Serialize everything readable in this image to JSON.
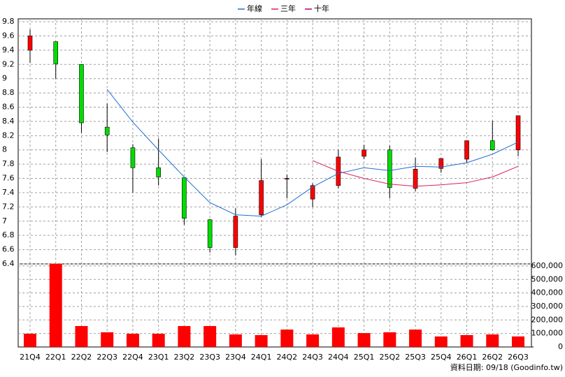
{
  "chart_data": {
    "type": "candlestick",
    "legend": "top",
    "grid": true,
    "footer": "資料日期: 09/18 (Goodinfo.tw)",
    "categories": [
      "21Q4",
      "22Q1",
      "22Q2",
      "22Q3",
      "22Q4",
      "23Q1",
      "23Q2",
      "23Q3",
      "23Q4",
      "24Q1",
      "24Q2",
      "24Q3",
      "24Q4",
      "25Q1",
      "25Q2",
      "25Q3",
      "25Q4",
      "26Q1",
      "26Q2",
      "26Q3"
    ],
    "up_color": "#ff0000",
    "down_color": "#00dd00",
    "open": [
      9.4,
      9.52,
      9.2,
      8.32,
      8.03,
      7.75,
      7.61,
      7.02,
      6.63,
      7.09,
      7.59,
      7.31,
      7.5,
      7.91,
      8.0,
      7.46,
      7.74,
      7.87,
      8.13,
      8.0
    ],
    "high": [
      9.69,
      9.52,
      9.2,
      8.65,
      8.08,
      8.16,
      7.61,
      7.03,
      7.18,
      7.87,
      7.65,
      7.53,
      8.0,
      8.07,
      8.06,
      7.89,
      7.88,
      8.13,
      8.41,
      8.48
    ],
    "low": [
      9.22,
      9.0,
      8.24,
      7.97,
      7.4,
      7.5,
      6.95,
      6.56,
      6.52,
      7.06,
      7.32,
      7.2,
      7.46,
      7.87,
      7.32,
      7.42,
      7.68,
      7.82,
      7.99,
      7.91
    ],
    "close": [
      9.6,
      9.21,
      8.38,
      8.21,
      7.75,
      7.62,
      7.04,
      6.63,
      7.07,
      7.57,
      7.6,
      7.5,
      7.9,
      8.0,
      7.47,
      7.73,
      7.88,
      8.13,
      8.0,
      8.48
    ],
    "series": [
      {
        "name": "年線",
        "color": "#1f6fd0",
        "values": [
          null,
          null,
          null,
          8.85,
          8.39,
          8.0,
          7.62,
          7.26,
          7.09,
          7.07,
          7.23,
          7.48,
          7.67,
          7.75,
          7.71,
          7.77,
          7.76,
          7.82,
          7.94,
          8.11
        ]
      },
      {
        "name": "三年",
        "color": "#d8205a",
        "values": [
          null,
          null,
          null,
          null,
          null,
          null,
          null,
          null,
          null,
          null,
          null,
          7.85,
          7.7,
          7.6,
          7.52,
          7.49,
          7.51,
          7.54,
          7.62,
          7.77
        ]
      },
      {
        "name": "十年",
        "color": "#b00070",
        "values": [
          null,
          null,
          null,
          null,
          null,
          null,
          null,
          null,
          null,
          null,
          null,
          null,
          null,
          null,
          null,
          null,
          null,
          null,
          null,
          null
        ]
      }
    ],
    "ylim": [
      6.4,
      9.84
    ],
    "yticks": [
      6.4,
      6.6,
      6.8,
      7,
      7.2,
      7.4,
      7.6,
      7.8,
      8,
      8.2,
      8.4,
      8.6,
      8.8,
      9,
      9.2,
      9.4,
      9.6,
      9.8
    ],
    "volume": {
      "color": "#ff0000",
      "axis": "y2",
      "values": [
        98000,
        616000,
        155000,
        109000,
        98000,
        98000,
        155000,
        155000,
        93000,
        88000,
        129000,
        93000,
        145000,
        103000,
        109000,
        129000,
        78000,
        88000,
        93000,
        78000
      ]
    },
    "y2lim": [
      0,
      615000
    ],
    "y2ticks": [
      0,
      {
        "value": 100000,
        "label": "100,000"
      },
      {
        "value": 200000,
        "label": "200,000"
      },
      {
        "value": 300000,
        "label": "300,000"
      },
      {
        "value": 400000,
        "label": "400,000"
      },
      {
        "value": 500000,
        "label": "500,000"
      },
      {
        "value": 600000,
        "label": "600,000"
      }
    ]
  }
}
